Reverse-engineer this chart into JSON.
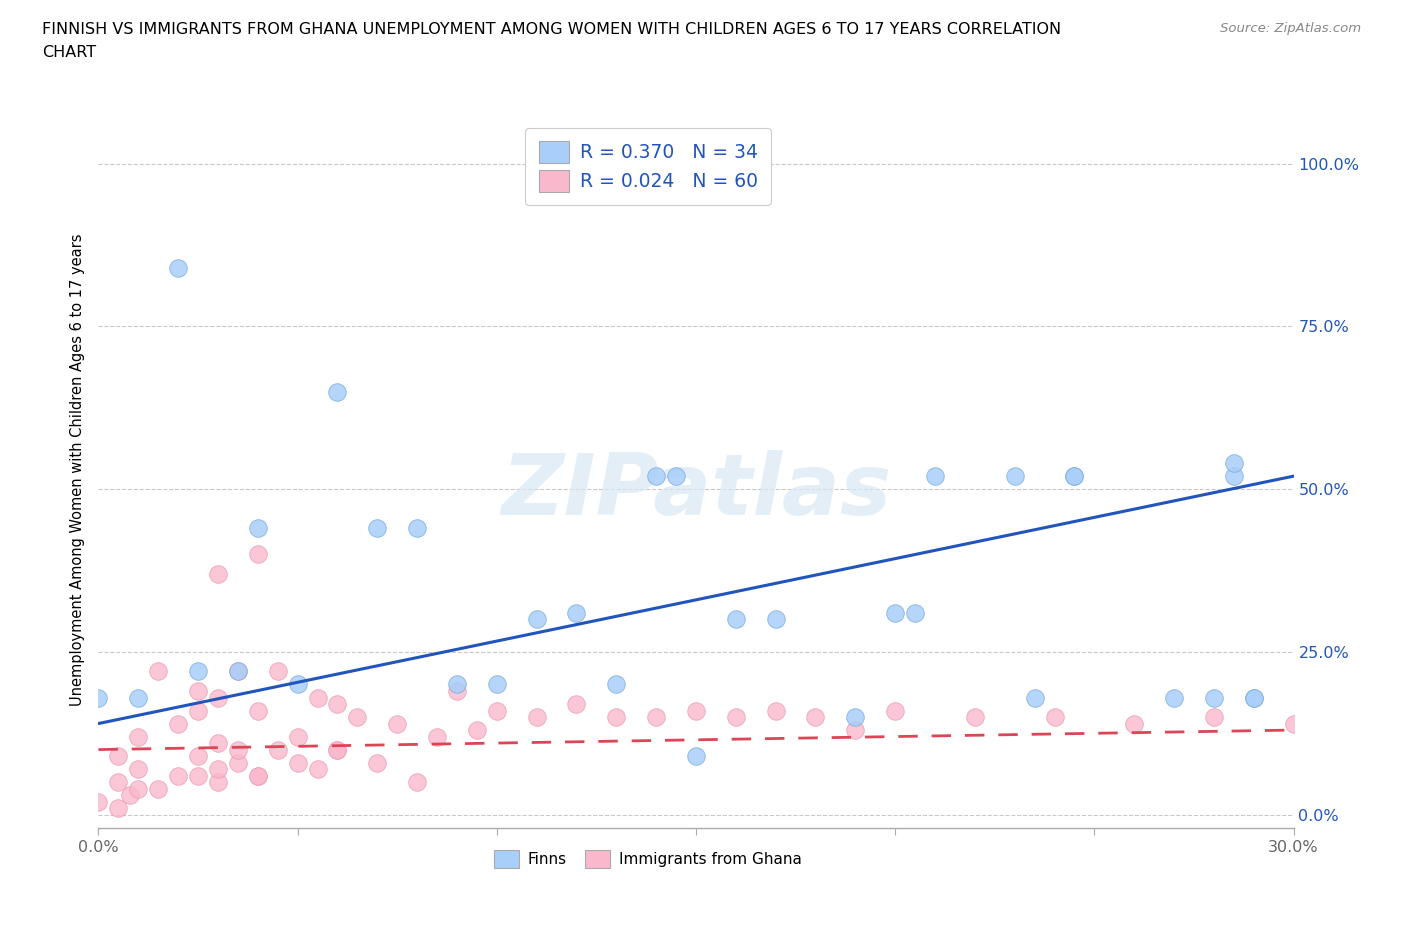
{
  "title_line1": "FINNISH VS IMMIGRANTS FROM GHANA UNEMPLOYMENT AMONG WOMEN WITH CHILDREN AGES 6 TO 17 YEARS CORRELATION",
  "title_line2": "CHART",
  "source": "Source: ZipAtlas.com",
  "ylabel": "Unemployment Among Women with Children Ages 6 to 17 years",
  "xlim": [
    0.0,
    0.3
  ],
  "ylim": [
    -0.02,
    1.08
  ],
  "yticks": [
    0.0,
    0.25,
    0.5,
    0.75,
    1.0
  ],
  "ytick_labels": [
    "0.0%",
    "25.0%",
    "50.0%",
    "75.0%",
    "100.0%"
  ],
  "xtick_positions": [
    0.0,
    0.05,
    0.1,
    0.15,
    0.2,
    0.25,
    0.3
  ],
  "xtick_labels": [
    "0.0%",
    "",
    "",
    "",
    "",
    "",
    "30.0%"
  ],
  "finns_R": 0.37,
  "finns_N": 34,
  "ghana_R": 0.024,
  "ghana_N": 60,
  "finns_color": "#A8CEFA",
  "ghana_color": "#FAB8CC",
  "trend_finns_color": "#2255BB",
  "trend_ghana_color": "#DD4455",
  "background_color": "#FFFFFF",
  "grid_color": "#BBBBBB",
  "watermark": "ZIPatlas",
  "finns_x": [
    0.02,
    0.04,
    0.05,
    0.07,
    0.09,
    0.1,
    0.11,
    0.12,
    0.13,
    0.14,
    0.145,
    0.15,
    0.16,
    0.17,
    0.19,
    0.2,
    0.205,
    0.21,
    0.23,
    0.235,
    0.245,
    0.245,
    0.27,
    0.28,
    0.285,
    0.285,
    0.29,
    0.29,
    0.0,
    0.01,
    0.025,
    0.035,
    0.06,
    0.08
  ],
  "finns_y": [
    0.84,
    0.44,
    0.2,
    0.44,
    0.2,
    0.2,
    0.3,
    0.31,
    0.2,
    0.52,
    0.52,
    0.09,
    0.3,
    0.3,
    0.15,
    0.31,
    0.31,
    0.52,
    0.52,
    0.18,
    0.52,
    0.52,
    0.18,
    0.18,
    0.52,
    0.54,
    0.18,
    0.18,
    0.18,
    0.18,
    0.22,
    0.22,
    0.65,
    0.44
  ],
  "ghana_x": [
    0.0,
    0.005,
    0.005,
    0.008,
    0.01,
    0.01,
    0.015,
    0.015,
    0.02,
    0.02,
    0.025,
    0.025,
    0.025,
    0.03,
    0.03,
    0.03,
    0.035,
    0.035,
    0.04,
    0.04,
    0.045,
    0.045,
    0.05,
    0.055,
    0.055,
    0.06,
    0.06,
    0.065,
    0.07,
    0.075,
    0.08,
    0.085,
    0.09,
    0.095,
    0.1,
    0.11,
    0.12,
    0.13,
    0.14,
    0.15,
    0.16,
    0.17,
    0.18,
    0.19,
    0.2,
    0.22,
    0.24,
    0.26,
    0.28,
    0.3,
    0.03,
    0.04,
    0.05,
    0.06,
    0.025,
    0.03,
    0.035,
    0.04,
    0.005,
    0.01
  ],
  "ghana_y": [
    0.02,
    0.01,
    0.05,
    0.03,
    0.07,
    0.12,
    0.04,
    0.22,
    0.06,
    0.14,
    0.09,
    0.19,
    0.16,
    0.05,
    0.11,
    0.18,
    0.08,
    0.22,
    0.06,
    0.16,
    0.1,
    0.22,
    0.12,
    0.07,
    0.18,
    0.1,
    0.17,
    0.15,
    0.08,
    0.14,
    0.05,
    0.12,
    0.19,
    0.13,
    0.16,
    0.15,
    0.17,
    0.15,
    0.15,
    0.16,
    0.15,
    0.16,
    0.15,
    0.13,
    0.16,
    0.15,
    0.15,
    0.14,
    0.15,
    0.14,
    0.37,
    0.4,
    0.08,
    0.1,
    0.06,
    0.07,
    0.1,
    0.06,
    0.09,
    0.04
  ],
  "finns_trendline_x": [
    0.0,
    0.3
  ],
  "finns_trendline_y": [
    0.14,
    0.52
  ],
  "ghana_trendline_x": [
    0.0,
    0.3
  ],
  "ghana_trendline_y": [
    0.1,
    0.13
  ]
}
